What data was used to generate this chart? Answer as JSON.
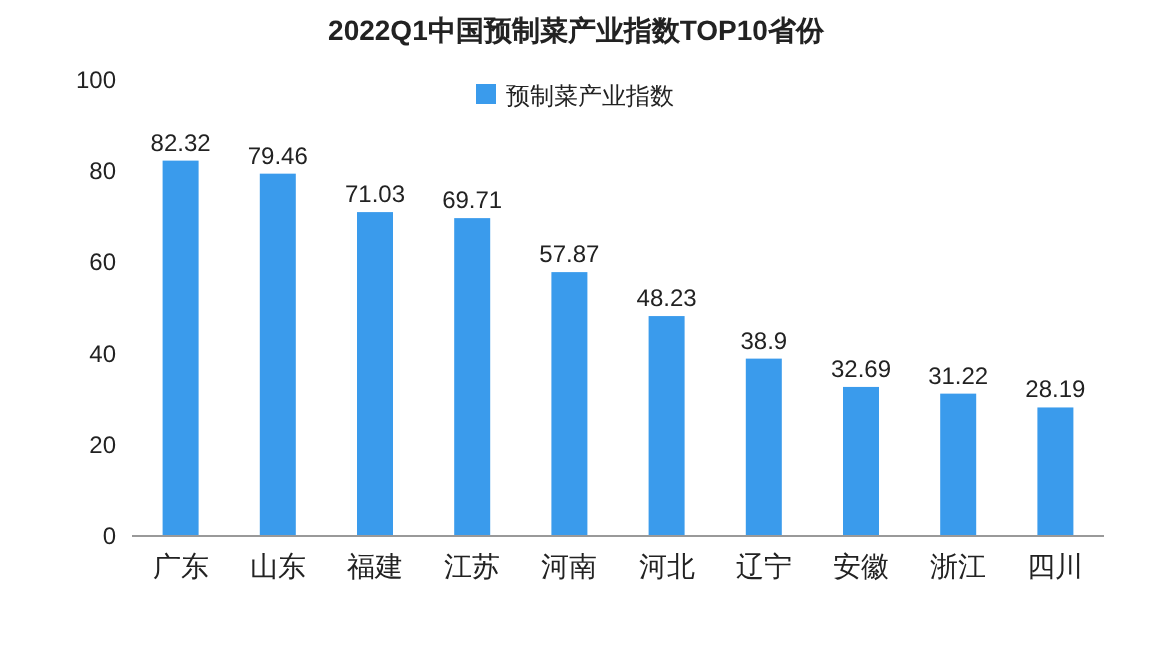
{
  "chart_data": {
    "type": "bar",
    "title": "2022Q1中国预制菜产业指数TOP10省份",
    "categories": [
      "广东",
      "山东",
      "福建",
      "江苏",
      "河南",
      "河北",
      "辽宁",
      "安徽",
      "浙江",
      "四川"
    ],
    "series": [
      {
        "name": "预制菜产业指数",
        "color": "#3a9bec",
        "values": [
          82.32,
          79.46,
          71.03,
          69.71,
          57.87,
          48.23,
          38.9,
          32.69,
          31.22,
          28.19
        ]
      }
    ],
    "ylim": [
      0,
      100
    ],
    "yticks": [
      0,
      20,
      40,
      60,
      80,
      100
    ],
    "data_labels": true,
    "legend": "top",
    "grid": false
  }
}
